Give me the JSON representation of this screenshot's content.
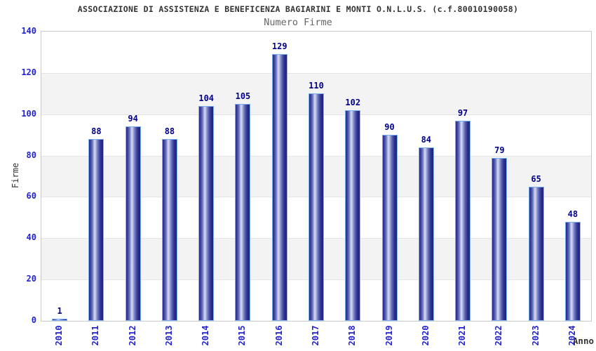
{
  "chart_data": {
    "type": "bar",
    "title": "ASSOCIAZIONE DI ASSISTENZA E BENEFICENZA BAGIARINI E MONTI O.N.L.U.S. (c.f.80010190058)",
    "subtitle": "Numero Firme",
    "xlabel": "Anno",
    "ylabel": "Firme",
    "categories": [
      "2010",
      "2011",
      "2012",
      "2013",
      "2014",
      "2015",
      "2016",
      "2017",
      "2018",
      "2019",
      "2020",
      "2021",
      "2022",
      "2023",
      "2024"
    ],
    "values": [
      1,
      88,
      94,
      88,
      104,
      105,
      129,
      110,
      102,
      90,
      84,
      97,
      79,
      65,
      48
    ],
    "ylim": [
      0,
      140
    ],
    "yticks": [
      0,
      20,
      40,
      60,
      80,
      100,
      120,
      140
    ],
    "grid": "alternating horizontal bands",
    "legend_position": "none",
    "bar_value_labels_shown": true,
    "colors": {
      "bar_edge_dark": "#272c87",
      "bar_edge_dark_right": "#1f2375",
      "bar_highlight": "#d9dcf1",
      "bar_border": "#7db0ee",
      "value_label": "#00008b",
      "axis_tick_label": "#2323cc",
      "title": "#333333",
      "subtitle": "#666666",
      "band_gray": "#f3f3f3",
      "plot_border": "#c9c9c9"
    }
  }
}
